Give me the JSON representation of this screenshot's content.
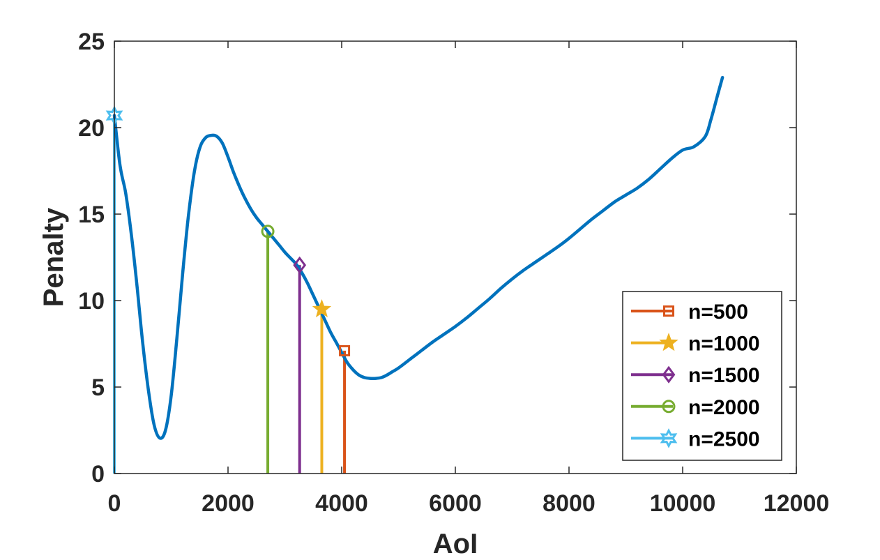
{
  "chart_data": {
    "type": "line",
    "title": "",
    "xlabel": "AoI",
    "ylabel": "Penalty",
    "xlim": [
      0,
      12000
    ],
    "ylim": [
      0,
      25
    ],
    "x_ticks": [
      0,
      2000,
      4000,
      6000,
      8000,
      10000,
      12000
    ],
    "x_tick_labels": [
      "0",
      "2000",
      "4000",
      "6000",
      "8000",
      "10000",
      "12000"
    ],
    "y_ticks": [
      0,
      5,
      10,
      15,
      20,
      25
    ],
    "y_tick_labels": [
      "0",
      "5",
      "10",
      "15",
      "20",
      "25"
    ],
    "grid": false,
    "legend_position": "bottom-right",
    "curve": {
      "color": "#0072BD",
      "x": [
        0,
        100,
        200,
        300,
        400,
        500,
        600,
        700,
        800,
        900,
        1000,
        1100,
        1200,
        1300,
        1400,
        1500,
        1600,
        1700,
        1800,
        1900,
        2000,
        2100,
        2200,
        2300,
        2400,
        2500,
        2600,
        2700,
        2800,
        2900,
        3000,
        3100,
        3200,
        3300,
        3400,
        3500,
        3600,
        3700,
        3800,
        3900,
        4000,
        4100,
        4200,
        4300,
        4400,
        4500,
        4600,
        4700,
        4800,
        4900,
        5000,
        5200,
        5400,
        5600,
        5800,
        6000,
        6200,
        6400,
        6600,
        6800,
        7000,
        7200,
        7400,
        7600,
        7800,
        8000,
        8200,
        8400,
        8600,
        8800,
        9000,
        9200,
        9400,
        9600,
        9800,
        10000,
        10200,
        10400,
        10500,
        10600,
        10700
      ],
      "y": [
        20.7,
        17.8,
        16.2,
        13.8,
        10.8,
        7.5,
        4.8,
        2.8,
        2.05,
        2.5,
        4.5,
        7.8,
        11.5,
        14.8,
        17.3,
        18.8,
        19.4,
        19.55,
        19.5,
        19.1,
        18.3,
        17.4,
        16.6,
        15.9,
        15.3,
        14.8,
        14.4,
        14.0,
        13.6,
        13.2,
        12.8,
        12.45,
        12.1,
        11.6,
        11.0,
        10.3,
        9.6,
        8.9,
        8.2,
        7.6,
        7.0,
        6.4,
        6.0,
        5.7,
        5.55,
        5.5,
        5.5,
        5.55,
        5.7,
        5.9,
        6.1,
        6.6,
        7.1,
        7.6,
        8.05,
        8.5,
        9.0,
        9.55,
        10.1,
        10.7,
        11.25,
        11.75,
        12.2,
        12.65,
        13.1,
        13.6,
        14.15,
        14.7,
        15.2,
        15.7,
        16.1,
        16.5,
        17.0,
        17.6,
        18.2,
        18.7,
        18.9,
        19.5,
        20.5,
        21.7,
        22.9
      ]
    },
    "series": [
      {
        "name": "n=500",
        "x": 4050,
        "y": 7.1,
        "color": "#D95319",
        "marker": "square"
      },
      {
        "name": "n=1000",
        "x": 3650,
        "y": 9.5,
        "color": "#EDB120",
        "marker": "star"
      },
      {
        "name": "n=1500",
        "x": 3260,
        "y": 12.05,
        "color": "#7E2F8E",
        "marker": "diamond"
      },
      {
        "name": "n=2000",
        "x": 2700,
        "y": 14.0,
        "color": "#77AC30",
        "marker": "circle"
      },
      {
        "name": "n=2500",
        "x": 0,
        "y": 20.7,
        "color": "#4DBEEE",
        "marker": "hexagram"
      }
    ]
  }
}
